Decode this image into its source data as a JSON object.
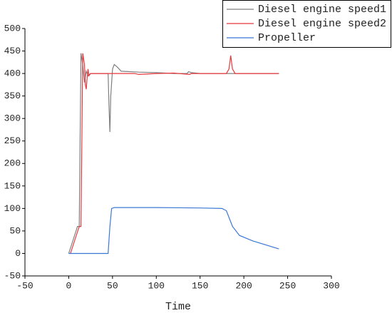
{
  "chart_data": {
    "type": "line",
    "x_label": "Time",
    "xlim": [
      -50,
      300
    ],
    "xticks": [
      -50,
      0,
      50,
      100,
      150,
      200,
      250,
      300
    ],
    "ylim": [
      -50,
      500
    ],
    "yticks": [
      -50,
      0,
      50,
      100,
      150,
      200,
      250,
      300,
      350,
      400,
      450,
      500
    ],
    "legend": "top-right",
    "series": [
      {
        "name": "Diesel engine speed1",
        "color": "#7f7f7f",
        "x": [
          0,
          5,
          10,
          12,
          14,
          16,
          18,
          20,
          22,
          25,
          45,
          46,
          47,
          48,
          50,
          52,
          55,
          60,
          80,
          100,
          120,
          135,
          137,
          140,
          150,
          240
        ],
        "values": [
          0,
          30,
          60,
          60,
          445,
          420,
          380,
          405,
          395,
          400,
          400,
          330,
          270,
          350,
          410,
          420,
          415,
          405,
          403,
          402,
          400,
          400,
          404,
          402,
          400,
          400
        ]
      },
      {
        "name": "Diesel engine speed2",
        "color": "#e8373b",
        "x": [
          2,
          7,
          12,
          14,
          16,
          18,
          19,
          20,
          21,
          22,
          23,
          25,
          50,
          75,
          80,
          100,
          120,
          138,
          140,
          180,
          183,
          185,
          187,
          190,
          240
        ],
        "values": [
          0,
          30,
          60,
          60,
          445,
          420,
          375,
          365,
          390,
          410,
          395,
          400,
          400,
          400,
          398,
          400,
          401,
          398,
          400,
          400,
          410,
          440,
          410,
          400,
          400
        ]
      },
      {
        "name": "Propeller",
        "color": "#3a78d6",
        "x": [
          0,
          45,
          47,
          49,
          52,
          100,
          150,
          175,
          180,
          183,
          187,
          195,
          210,
          240
        ],
        "values": [
          0,
          0,
          60,
          100,
          102,
          102,
          101,
          100,
          95,
          80,
          60,
          40,
          28,
          10
        ]
      }
    ]
  }
}
